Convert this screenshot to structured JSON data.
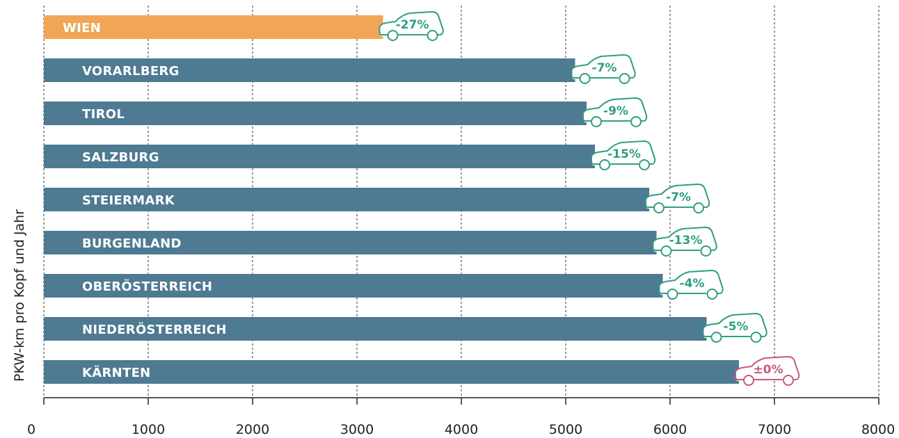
{
  "chart_data": {
    "type": "bar",
    "orientation": "horizontal",
    "ylabel": "PKW-km pro Kopf und Jahr",
    "xlim": [
      0,
      8000
    ],
    "xticks": [
      0,
      1000,
      2000,
      3000,
      4000,
      5000,
      6000,
      7000,
      8000
    ],
    "grid": "vertical dashed",
    "categories": [
      "WIEN",
      "VORARLBERG",
      "TIROL",
      "SALZBURG",
      "STEIERMARK",
      "BURGENLAND",
      "OBERÖSTERREICH",
      "NIEDERÖSTERREICH",
      "KÄRNTEN"
    ],
    "values": [
      3250,
      5090,
      5200,
      5280,
      5800,
      5870,
      5930,
      6350,
      6660
    ],
    "change_labels": [
      "-27%",
      "-7%",
      "-9%",
      "-15%",
      "-7%",
      "-13%",
      "-4%",
      "-5%",
      "±0%"
    ],
    "colors": {
      "highlight_bar": "#f0a656",
      "bar": "#4e7a92",
      "decrease": "#2f9e82",
      "no_change": "#c85a78",
      "grid": "#555555",
      "axis": "#222222"
    }
  }
}
